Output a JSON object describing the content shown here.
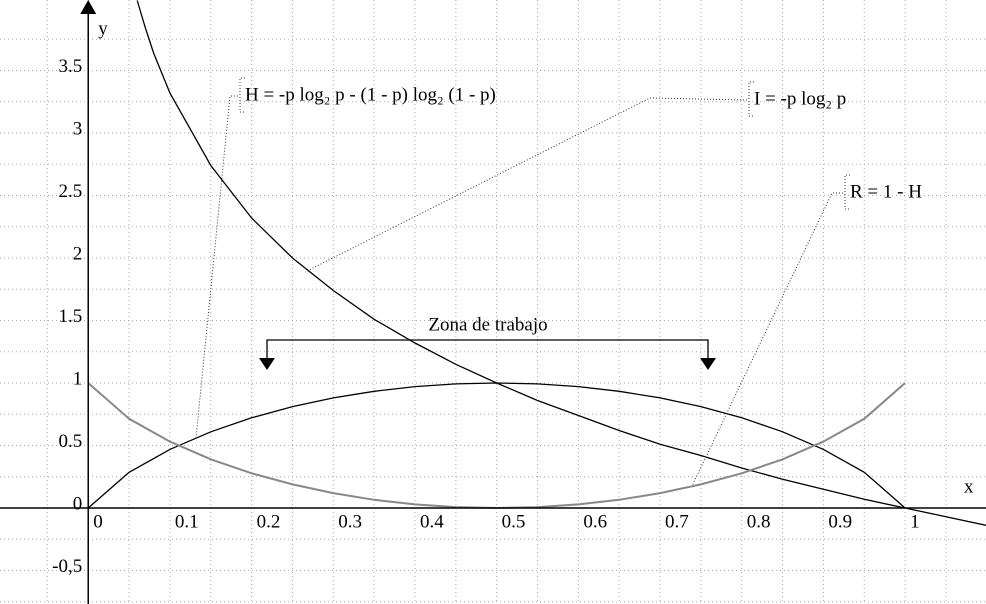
{
  "chart_data": {
    "type": "line",
    "xlabel": "x",
    "ylabel": "y",
    "xlim": [
      -0.108,
      1.099
    ],
    "ylim": [
      -0.768,
      4.064
    ],
    "xticks": [
      0,
      0.1,
      0.2,
      0.3,
      0.4,
      0.5,
      0.6,
      0.7,
      0.8,
      0.9,
      1
    ],
    "yticks": [
      {
        "value": -0.5,
        "label": "-0,5"
      },
      0,
      0.5,
      1,
      1.5,
      2,
      2.5,
      3,
      3.5
    ],
    "grid": true,
    "series": [
      {
        "name": "H = -p log₂ p - (1 - p) log₂ (1 - p)",
        "color": "#000000",
        "x": [
          0,
          0.05,
          0.1,
          0.15,
          0.2,
          0.25,
          0.3,
          0.35,
          0.4,
          0.45,
          0.5,
          0.55,
          0.6,
          0.65,
          0.7,
          0.75,
          0.8,
          0.85,
          0.9,
          0.95,
          1
        ],
        "values": [
          0,
          0.286,
          0.469,
          0.61,
          0.722,
          0.811,
          0.881,
          0.934,
          0.971,
          0.993,
          1,
          0.993,
          0.971,
          0.934,
          0.881,
          0.811,
          0.722,
          0.61,
          0.469,
          0.286,
          0
        ]
      },
      {
        "name": "I = -p log₂ p",
        "color": "#000000",
        "x": [
          0.06,
          0.07,
          0.08,
          0.1,
          0.15,
          0.2,
          0.25,
          0.3,
          0.35,
          0.4,
          0.45,
          0.5,
          0.55,
          0.6,
          0.65,
          0.7,
          0.75,
          0.8,
          0.85,
          0.9,
          0.95,
          1,
          1.05,
          1.1
        ],
        "values": [
          4.06,
          3.84,
          3.64,
          3.32,
          2.74,
          2.32,
          2,
          1.74,
          1.51,
          1.32,
          1.15,
          1,
          0.86,
          0.74,
          0.62,
          0.51,
          0.42,
          0.32,
          0.23,
          0.15,
          0.07,
          0,
          -0.07,
          -0.14
        ]
      },
      {
        "name": "R = 1 - H",
        "color": "#888888",
        "x": [
          0,
          0.05,
          0.1,
          0.15,
          0.2,
          0.25,
          0.3,
          0.35,
          0.4,
          0.45,
          0.5,
          0.55,
          0.6,
          0.65,
          0.7,
          0.75,
          0.8,
          0.85,
          0.9,
          0.95,
          1
        ],
        "values": [
          1,
          0.714,
          0.531,
          0.39,
          0.278,
          0.189,
          0.119,
          0.066,
          0.029,
          0.007,
          0,
          0.007,
          0.029,
          0.066,
          0.119,
          0.189,
          0.278,
          0.39,
          0.531,
          0.714,
          1
        ]
      }
    ],
    "annotation": "Zona de trabajo"
  }
}
